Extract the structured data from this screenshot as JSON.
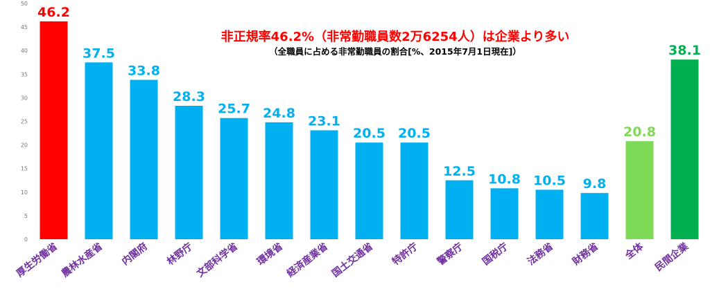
{
  "chart_data": {
    "type": "bar",
    "title": "非正規率46.2%（非常勤職員数2万6254人）は企業より多い",
    "subtitle": "（全職員に占める非常勤職員の割合[%、2015年7月1日現在]）",
    "xlabel": "",
    "ylabel": "",
    "ylim": [
      0,
      50
    ],
    "yticks": [
      0,
      5,
      10,
      15,
      20,
      25,
      30,
      35,
      40,
      45,
      50
    ],
    "grid": false,
    "legend": "none",
    "categories": [
      "厚生労働省",
      "農林水産省",
      "内閣府",
      "林野庁",
      "文部科学省",
      "環境省",
      "経済産業省",
      "国土交通省",
      "特許庁",
      "警察庁",
      "国税庁",
      "法務省",
      "財務省",
      "全体",
      "民間企業"
    ],
    "values": [
      46.2,
      37.5,
      33.8,
      28.3,
      25.7,
      24.8,
      23.1,
      20.5,
      20.5,
      12.5,
      10.8,
      10.5,
      9.8,
      20.8,
      38.1
    ],
    "value_labels": [
      "46.2",
      "37.5",
      "33.8",
      "28.3",
      "25.7",
      "24.8",
      "23.1",
      "20.5",
      "20.5",
      "12.5",
      "10.8",
      "10.5",
      "9.8",
      "20.8",
      "38.1"
    ],
    "bar_colors": [
      "#ff0000",
      "#00b0f0",
      "#00b0f0",
      "#00b0f0",
      "#00b0f0",
      "#00b0f0",
      "#00b0f0",
      "#00b0f0",
      "#00b0f0",
      "#00b0f0",
      "#00b0f0",
      "#00b0f0",
      "#00b0f0",
      "#7ed957",
      "#00b050"
    ],
    "label_colors": [
      "#ff0000",
      "#00b0f0",
      "#00b0f0",
      "#00b0f0",
      "#00b0f0",
      "#00b0f0",
      "#00b0f0",
      "#00b0f0",
      "#00b0f0",
      "#00b0f0",
      "#00b0f0",
      "#00b0f0",
      "#00b0f0",
      "#7ed957",
      "#00b050"
    ],
    "title_color": "#ff0000",
    "category_color": "#7030a0"
  }
}
